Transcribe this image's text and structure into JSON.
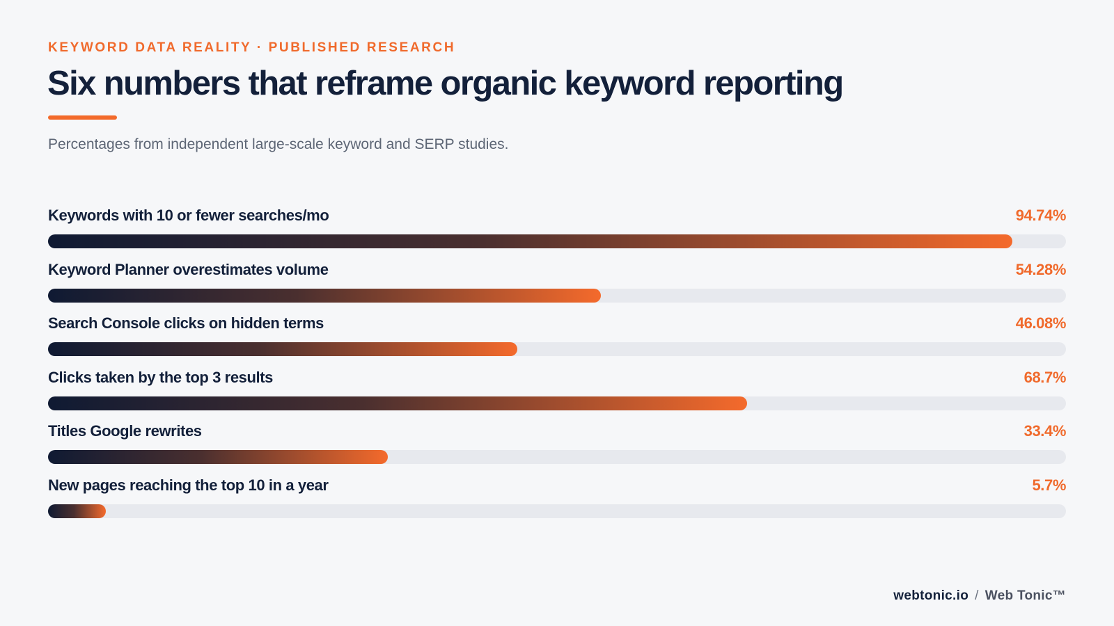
{
  "header": {
    "eyebrow": "KEYWORD DATA REALITY · PUBLISHED RESEARCH",
    "title": "Six numbers that reframe organic keyword reporting",
    "subtitle": "Percentages from independent large-scale keyword and SERP studies."
  },
  "colors": {
    "accent": "#f36a2a",
    "navy": "#13203a",
    "track": "#e7e9ee",
    "background": "#f6f7f9"
  },
  "chart_data": {
    "type": "bar",
    "orientation": "horizontal",
    "categories": [
      "Keywords with 10 or fewer searches/mo",
      "Keyword Planner overestimates volume",
      "Search Console clicks on hidden terms",
      "Clicks taken by the top 3 results",
      "Titles Google rewrites",
      "New pages reaching the top 10 in a year"
    ],
    "values": [
      94.74,
      54.28,
      46.08,
      68.7,
      33.4,
      5.7
    ],
    "value_labels": [
      "94.74%",
      "54.28%",
      "46.08%",
      "68.7%",
      "33.4%",
      "5.7%"
    ],
    "xlim": [
      0,
      100
    ],
    "grid": false,
    "legend": "none"
  },
  "footer": {
    "domain": "webtonic.io",
    "separator": "/",
    "brand": "Web Tonic™"
  }
}
